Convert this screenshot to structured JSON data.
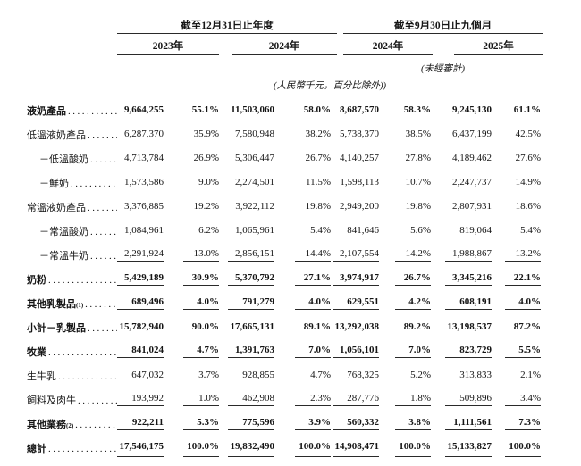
{
  "table": {
    "period_groups": [
      {
        "title": "截至12月31日止年度",
        "years": [
          "2023年",
          "2024年"
        ]
      },
      {
        "title": "截至9月30日止九個月",
        "years": [
          "2024年",
          "2025年"
        ]
      }
    ],
    "unaudited_note": "(未經審計)",
    "unit_note": "(人民幣千元，百分比除外))",
    "rows": [
      {
        "label": "液奶產品",
        "sup": "",
        "indent": false,
        "bold": true,
        "rule": "none",
        "values": [
          "9,664,255",
          "55.1%",
          "11,503,060",
          "58.0%",
          "8,687,570",
          "58.3%",
          "9,245,130",
          "61.1%"
        ]
      },
      {
        "label": "低溫液奶產品",
        "sup": "",
        "indent": false,
        "bold": false,
        "rule": "none",
        "values": [
          "6,287,370",
          "35.9%",
          "7,580,948",
          "38.2%",
          "5,738,370",
          "38.5%",
          "6,437,199",
          "42.5%"
        ]
      },
      {
        "label": "－低溫酸奶",
        "sup": "",
        "indent": true,
        "bold": false,
        "rule": "none",
        "values": [
          "4,713,784",
          "26.9%",
          "5,306,447",
          "26.7%",
          "4,140,257",
          "27.8%",
          "4,189,462",
          "27.6%"
        ]
      },
      {
        "label": "－鮮奶",
        "sup": "",
        "indent": true,
        "bold": false,
        "rule": "none",
        "values": [
          "1,573,586",
          "9.0%",
          "2,274,501",
          "11.5%",
          "1,598,113",
          "10.7%",
          "2,247,737",
          "14.9%"
        ]
      },
      {
        "label": "常溫液奶產品",
        "sup": "",
        "indent": false,
        "bold": false,
        "rule": "none",
        "values": [
          "3,376,885",
          "19.2%",
          "3,922,112",
          "19.8%",
          "2,949,200",
          "19.8%",
          "2,807,931",
          "18.6%"
        ]
      },
      {
        "label": "－常溫酸奶",
        "sup": "",
        "indent": true,
        "bold": false,
        "rule": "none",
        "values": [
          "1,084,961",
          "6.2%",
          "1,065,961",
          "5.4%",
          "841,646",
          "5.6%",
          "819,064",
          "5.4%"
        ]
      },
      {
        "label": "－常溫牛奶",
        "sup": "",
        "indent": true,
        "bold": false,
        "rule": "single",
        "values": [
          "2,291,924",
          "13.0%",
          "2,856,151",
          "14.4%",
          "2,107,554",
          "14.2%",
          "1,988,867",
          "13.2%"
        ]
      },
      {
        "label": "奶粉",
        "sup": "",
        "indent": false,
        "bold": true,
        "rule": "single",
        "values": [
          "5,429,189",
          "30.9%",
          "5,370,792",
          "27.1%",
          "3,974,917",
          "26.7%",
          "3,345,216",
          "22.1%"
        ]
      },
      {
        "label": "其他乳製品",
        "sup": "(1)",
        "indent": false,
        "bold": true,
        "rule": "single",
        "values": [
          "689,496",
          "4.0%",
          "791,279",
          "4.0%",
          "629,551",
          "4.2%",
          "608,191",
          "4.0%"
        ]
      },
      {
        "label": "小計－乳製品",
        "sup": "",
        "indent": false,
        "bold": true,
        "rule": "none",
        "values": [
          "15,782,940",
          "90.0%",
          "17,665,131",
          "89.1%",
          "13,292,038",
          "89.2%",
          "13,198,537",
          "87.2%"
        ]
      },
      {
        "label": "牧業",
        "sup": "",
        "indent": false,
        "bold": true,
        "rule": "single",
        "values": [
          "841,024",
          "4.7%",
          "1,391,763",
          "7.0%",
          "1,056,101",
          "7.0%",
          "823,729",
          "5.5%"
        ]
      },
      {
        "label": "生牛乳",
        "sup": "",
        "indent": false,
        "bold": false,
        "rule": "none",
        "values": [
          "647,032",
          "3.7%",
          "928,855",
          "4.7%",
          "768,325",
          "5.2%",
          "313,833",
          "2.1%"
        ]
      },
      {
        "label": "飼料及肉牛",
        "sup": "",
        "indent": false,
        "bold": false,
        "rule": "single",
        "values": [
          "193,992",
          "1.0%",
          "462,908",
          "2.3%",
          "287,776",
          "1.8%",
          "509,896",
          "3.4%"
        ]
      },
      {
        "label": "其他業務",
        "sup": "(2)",
        "indent": false,
        "bold": true,
        "rule": "single",
        "values": [
          "922,211",
          "5.3%",
          "775,596",
          "3.9%",
          "560,332",
          "3.8%",
          "1,111,561",
          "7.3%"
        ]
      },
      {
        "label": "總計",
        "sup": "",
        "indent": false,
        "bold": true,
        "rule": "double",
        "values": [
          "17,546,175",
          "100.0%",
          "19,832,490",
          "100.0%",
          "14,908,471",
          "100.0%",
          "15,133,827",
          "100.0%"
        ]
      }
    ]
  }
}
